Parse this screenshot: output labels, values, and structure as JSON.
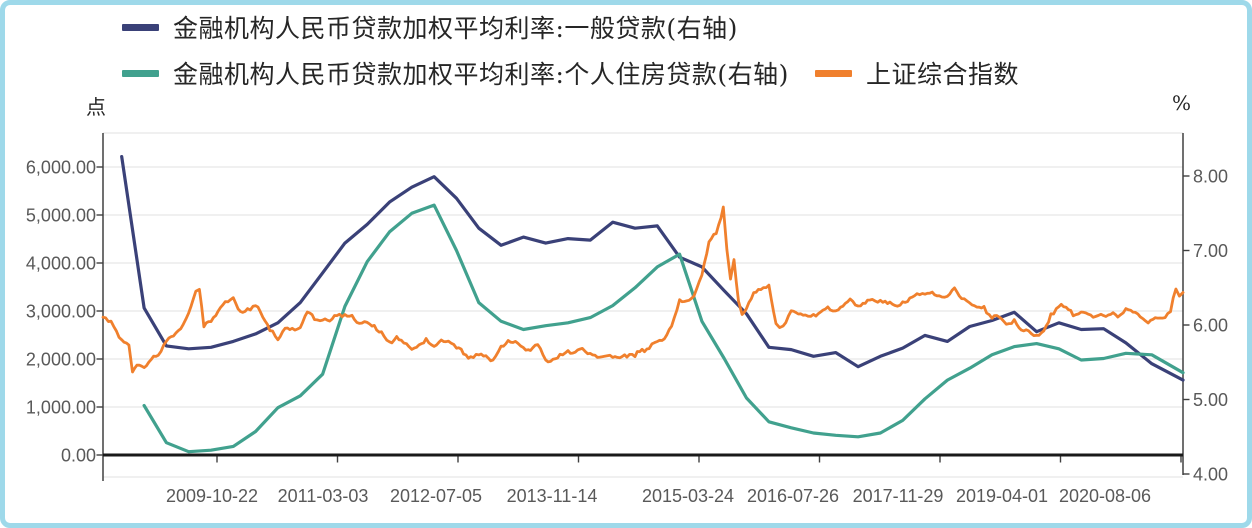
{
  "colors": {
    "navy": "#3A4178",
    "teal": "#41A18E",
    "orange": "#F0802D",
    "frame_border": "#9ED9EA",
    "grid": "#E2E2E2",
    "axis_line": "#404040",
    "zero_line": "#1A1A1A",
    "tick_text": "#595959",
    "legend_text": "#262626"
  },
  "legend": {
    "item1": "金融机构人民币贷款加权平均利率:一般贷款(右轴)",
    "item2": "金融机构人民币贷款加权平均利率:个人住房贷款(右轴)",
    "item3": "上证综合指数"
  },
  "chart_data": {
    "type": "line",
    "title": "",
    "legend_position": "top-left",
    "grid": "horizontal",
    "left_axis": {
      "label": "点",
      "tick_labels": [
        "6,000.00",
        "5,000.00",
        "4,000.00",
        "3,000.00",
        "2,000.00",
        "1,000.00",
        "0.00"
      ],
      "tick_values": [
        6000,
        5000,
        4000,
        3000,
        2000,
        1000,
        0
      ],
      "range": [
        0,
        6700
      ]
    },
    "right_axis": {
      "label": "%",
      "tick_labels": [
        "8.00",
        "7.00",
        "6.00",
        "5.00",
        "4.00"
      ],
      "tick_values": [
        8,
        7,
        6,
        5,
        4
      ],
      "range": [
        4.0,
        8.6
      ]
    },
    "x_axis": {
      "tick_labels": [
        "2009-10-22",
        "2011-03-03",
        "2012-07-05",
        "2013-11-14",
        "2015-03-24",
        "2016-07-26",
        "2017-11-29",
        "2019-04-01",
        "2020-08-06"
      ],
      "range_decimal_years": [
        2008.5,
        2020.6
      ]
    },
    "series": [
      {
        "name": "金融机构人民币贷款加权平均利率:一般贷款(右轴)",
        "axis": "right",
        "unit": "%",
        "color": "#3A4178",
        "points": [
          [
            2008.71,
            8.26
          ],
          [
            2008.96,
            6.23
          ],
          [
            2009.21,
            5.72
          ],
          [
            2009.46,
            5.68
          ],
          [
            2009.71,
            5.7
          ],
          [
            2009.96,
            5.78
          ],
          [
            2010.21,
            5.88
          ],
          [
            2010.46,
            6.03
          ],
          [
            2010.71,
            6.3
          ],
          [
            2010.96,
            6.7
          ],
          [
            2011.21,
            7.1
          ],
          [
            2011.46,
            7.35
          ],
          [
            2011.71,
            7.65
          ],
          [
            2011.96,
            7.85
          ],
          [
            2012.21,
            7.99
          ],
          [
            2012.46,
            7.7
          ],
          [
            2012.71,
            7.3
          ],
          [
            2012.96,
            7.07
          ],
          [
            2013.21,
            7.18
          ],
          [
            2013.46,
            7.1
          ],
          [
            2013.71,
            7.16
          ],
          [
            2013.96,
            7.14
          ],
          [
            2014.21,
            7.38
          ],
          [
            2014.46,
            7.3
          ],
          [
            2014.71,
            7.33
          ],
          [
            2014.96,
            6.91
          ],
          [
            2015.21,
            6.78
          ],
          [
            2015.46,
            6.46
          ],
          [
            2015.71,
            6.15
          ],
          [
            2015.96,
            5.7
          ],
          [
            2016.21,
            5.67
          ],
          [
            2016.46,
            5.58
          ],
          [
            2016.71,
            5.63
          ],
          [
            2016.96,
            5.44
          ],
          [
            2017.21,
            5.58
          ],
          [
            2017.46,
            5.69
          ],
          [
            2017.71,
            5.86
          ],
          [
            2017.96,
            5.78
          ],
          [
            2018.21,
            5.98
          ],
          [
            2018.46,
            6.06
          ],
          [
            2018.71,
            6.17
          ],
          [
            2018.96,
            5.91
          ],
          [
            2019.21,
            6.03
          ],
          [
            2019.46,
            5.94
          ],
          [
            2019.71,
            5.95
          ],
          [
            2019.96,
            5.76
          ],
          [
            2020.25,
            5.48
          ],
          [
            2020.6,
            5.26
          ]
        ]
      },
      {
        "name": "金融机构人民币贷款加权平均利率:个人住房贷款(右轴)",
        "axis": "right",
        "unit": "%",
        "color": "#41A18E",
        "points": [
          [
            2008.96,
            4.92
          ],
          [
            2009.21,
            4.42
          ],
          [
            2009.46,
            4.3
          ],
          [
            2009.71,
            4.32
          ],
          [
            2009.96,
            4.37
          ],
          [
            2010.21,
            4.57
          ],
          [
            2010.46,
            4.89
          ],
          [
            2010.71,
            5.05
          ],
          [
            2010.96,
            5.34
          ],
          [
            2011.21,
            6.25
          ],
          [
            2011.46,
            6.85
          ],
          [
            2011.71,
            7.25
          ],
          [
            2011.96,
            7.5
          ],
          [
            2012.21,
            7.61
          ],
          [
            2012.46,
            7.0
          ],
          [
            2012.71,
            6.3
          ],
          [
            2012.96,
            6.05
          ],
          [
            2013.21,
            5.94
          ],
          [
            2013.46,
            5.99
          ],
          [
            2013.71,
            6.03
          ],
          [
            2013.96,
            6.1
          ],
          [
            2014.21,
            6.26
          ],
          [
            2014.46,
            6.5
          ],
          [
            2014.71,
            6.78
          ],
          [
            2014.96,
            6.95
          ],
          [
            2015.21,
            6.05
          ],
          [
            2015.46,
            5.55
          ],
          [
            2015.71,
            5.02
          ],
          [
            2015.96,
            4.7
          ],
          [
            2016.21,
            4.62
          ],
          [
            2016.46,
            4.55
          ],
          [
            2016.71,
            4.52
          ],
          [
            2016.96,
            4.5
          ],
          [
            2017.21,
            4.55
          ],
          [
            2017.46,
            4.72
          ],
          [
            2017.71,
            5.01
          ],
          [
            2017.96,
            5.26
          ],
          [
            2018.21,
            5.42
          ],
          [
            2018.46,
            5.6
          ],
          [
            2018.71,
            5.71
          ],
          [
            2018.96,
            5.75
          ],
          [
            2019.21,
            5.68
          ],
          [
            2019.46,
            5.53
          ],
          [
            2019.71,
            5.55
          ],
          [
            2019.96,
            5.62
          ],
          [
            2020.25,
            5.6
          ],
          [
            2020.6,
            5.36
          ]
        ]
      },
      {
        "name": "上证综合指数",
        "axis": "left",
        "unit": "点",
        "color": "#F0802D",
        "points": [
          [
            2008.5,
            2870
          ],
          [
            2008.56,
            2780
          ],
          [
            2008.62,
            2680
          ],
          [
            2008.71,
            2400
          ],
          [
            2008.79,
            2290
          ],
          [
            2008.83,
            1730
          ],
          [
            2008.88,
            1870
          ],
          [
            2008.96,
            1820
          ],
          [
            2009.04,
            1990
          ],
          [
            2009.12,
            2080
          ],
          [
            2009.21,
            2370
          ],
          [
            2009.29,
            2480
          ],
          [
            2009.37,
            2630
          ],
          [
            2009.46,
            2960
          ],
          [
            2009.54,
            3410
          ],
          [
            2009.58,
            3450
          ],
          [
            2009.63,
            2670
          ],
          [
            2009.71,
            2780
          ],
          [
            2009.79,
            2995
          ],
          [
            2009.87,
            3195
          ],
          [
            2009.96,
            3277
          ],
          [
            2010.04,
            2990
          ],
          [
            2010.12,
            3050
          ],
          [
            2010.21,
            3110
          ],
          [
            2010.29,
            2870
          ],
          [
            2010.37,
            2590
          ],
          [
            2010.46,
            2400
          ],
          [
            2010.54,
            2640
          ],
          [
            2010.62,
            2640
          ],
          [
            2010.71,
            2655
          ],
          [
            2010.79,
            2980
          ],
          [
            2010.87,
            2820
          ],
          [
            2010.96,
            2810
          ],
          [
            2011.04,
            2790
          ],
          [
            2011.12,
            2905
          ],
          [
            2011.21,
            2928
          ],
          [
            2011.29,
            2911
          ],
          [
            2011.37,
            2743
          ],
          [
            2011.46,
            2762
          ],
          [
            2011.54,
            2701
          ],
          [
            2011.62,
            2567
          ],
          [
            2011.71,
            2359
          ],
          [
            2011.79,
            2468
          ],
          [
            2011.87,
            2333
          ],
          [
            2011.96,
            2199
          ],
          [
            2012.04,
            2293
          ],
          [
            2012.12,
            2428
          ],
          [
            2012.21,
            2263
          ],
          [
            2012.29,
            2396
          ],
          [
            2012.37,
            2372
          ],
          [
            2012.46,
            2225
          ],
          [
            2012.54,
            2103
          ],
          [
            2012.62,
            2047
          ],
          [
            2012.71,
            2086
          ],
          [
            2012.79,
            2068
          ],
          [
            2012.87,
            1980
          ],
          [
            2012.96,
            2269
          ],
          [
            2013.04,
            2385
          ],
          [
            2013.12,
            2366
          ],
          [
            2013.21,
            2237
          ],
          [
            2013.29,
            2178
          ],
          [
            2013.37,
            2301
          ],
          [
            2013.46,
            1979
          ],
          [
            2013.54,
            1994
          ],
          [
            2013.62,
            2098
          ],
          [
            2013.71,
            2175
          ],
          [
            2013.79,
            2141
          ],
          [
            2013.87,
            2221
          ],
          [
            2013.96,
            2116
          ],
          [
            2014.04,
            2033
          ],
          [
            2014.12,
            2056
          ],
          [
            2014.21,
            2033
          ],
          [
            2014.29,
            2026
          ],
          [
            2014.37,
            2039
          ],
          [
            2014.46,
            2048
          ],
          [
            2014.54,
            2202
          ],
          [
            2014.62,
            2217
          ],
          [
            2014.71,
            2364
          ],
          [
            2014.79,
            2420
          ],
          [
            2014.87,
            2683
          ],
          [
            2014.96,
            3235
          ],
          [
            2015.04,
            3210
          ],
          [
            2015.12,
            3310
          ],
          [
            2015.21,
            3748
          ],
          [
            2015.29,
            4442
          ],
          [
            2015.37,
            4612
          ],
          [
            2015.45,
            5166
          ],
          [
            2015.49,
            4277
          ],
          [
            2015.53,
            3664
          ],
          [
            2015.57,
            4070
          ],
          [
            2015.62,
            3206
          ],
          [
            2015.66,
            2927
          ],
          [
            2015.71,
            3053
          ],
          [
            2015.79,
            3383
          ],
          [
            2015.87,
            3445
          ],
          [
            2015.96,
            3539
          ],
          [
            2016.04,
            2738
          ],
          [
            2016.08,
            2655
          ],
          [
            2016.12,
            2688
          ],
          [
            2016.21,
            3004
          ],
          [
            2016.29,
            2938
          ],
          [
            2016.37,
            2917
          ],
          [
            2016.46,
            2930
          ],
          [
            2016.54,
            2979
          ],
          [
            2016.62,
            3085
          ],
          [
            2016.71,
            3005
          ],
          [
            2016.79,
            3100
          ],
          [
            2016.87,
            3250
          ],
          [
            2016.96,
            3104
          ],
          [
            2017.04,
            3159
          ],
          [
            2017.12,
            3242
          ],
          [
            2017.21,
            3223
          ],
          [
            2017.29,
            3155
          ],
          [
            2017.37,
            3117
          ],
          [
            2017.46,
            3192
          ],
          [
            2017.54,
            3273
          ],
          [
            2017.62,
            3361
          ],
          [
            2017.71,
            3349
          ],
          [
            2017.79,
            3393
          ],
          [
            2017.87,
            3317
          ],
          [
            2017.96,
            3307
          ],
          [
            2018.04,
            3481
          ],
          [
            2018.12,
            3259
          ],
          [
            2018.21,
            3169
          ],
          [
            2018.29,
            3082
          ],
          [
            2018.37,
            3095
          ],
          [
            2018.46,
            2847
          ],
          [
            2018.54,
            2876
          ],
          [
            2018.62,
            2725
          ],
          [
            2018.71,
            2821
          ],
          [
            2018.79,
            2603
          ],
          [
            2018.87,
            2588
          ],
          [
            2018.96,
            2494
          ],
          [
            2019.04,
            2585
          ],
          [
            2019.12,
            2941
          ],
          [
            2019.21,
            3091
          ],
          [
            2019.29,
            3078
          ],
          [
            2019.37,
            2899
          ],
          [
            2019.46,
            2979
          ],
          [
            2019.54,
            2933
          ],
          [
            2019.62,
            2886
          ],
          [
            2019.71,
            2905
          ],
          [
            2019.79,
            2929
          ],
          [
            2019.87,
            2872
          ],
          [
            2019.96,
            3050
          ],
          [
            2020.04,
            2977
          ],
          [
            2020.12,
            2880
          ],
          [
            2020.21,
            2750
          ],
          [
            2020.29,
            2860
          ],
          [
            2020.37,
            2852
          ],
          [
            2020.46,
            2985
          ],
          [
            2020.52,
            3458
          ],
          [
            2020.56,
            3310
          ],
          [
            2020.6,
            3386
          ]
        ]
      }
    ]
  }
}
